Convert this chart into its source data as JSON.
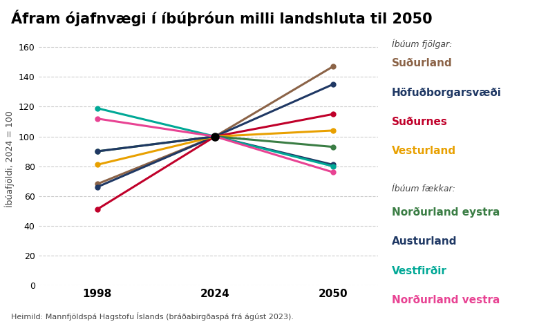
{
  "title": "Áfram ójafnvægi í íbúþróun milli landshluta til 2050",
  "ylabel": "Íbúafjöldi, 2024 = 100",
  "source": "Heimild: Mannfjöldspá Hagstofu Íslands (bráðabirgðaspá frá ágúst 2023).",
  "x": [
    1998,
    2024,
    2050
  ],
  "series": [
    {
      "name": "Suðurland",
      "color": "#8B6347",
      "values": [
        68,
        100,
        147
      ],
      "group": "fjölgar"
    },
    {
      "name": "Höfuðborgarsvæði",
      "color": "#1F3864",
      "values": [
        66,
        100,
        135
      ],
      "group": "fjölgar"
    },
    {
      "name": "Suðurnes",
      "color": "#C0002A",
      "values": [
        51,
        100,
        115
      ],
      "group": "fjölgar"
    },
    {
      "name": "Vesturland",
      "color": "#E8A000",
      "values": [
        81,
        100,
        104
      ],
      "group": "fjölgar"
    },
    {
      "name": "Norðurland eystra",
      "color": "#3A7D44",
      "values": [
        90,
        100,
        93
      ],
      "group": "fækkar"
    },
    {
      "name": "Austurland",
      "color": "#1F3864",
      "values": [
        90,
        100,
        81
      ],
      "group": "fækkar"
    },
    {
      "name": "Vestfirðir",
      "color": "#00A896",
      "values": [
        119,
        100,
        80
      ],
      "group": "fækkar"
    },
    {
      "name": "Norðurland vestra",
      "color": "#E84393",
      "values": [
        112,
        100,
        76
      ],
      "group": "fækkar"
    }
  ],
  "legend_fjolgar_label": "Íbúum fjölgar:",
  "legend_faekkar_label": "Íbúum fækkar:",
  "ylim": [
    0,
    170
  ],
  "yticks": [
    0,
    20,
    40,
    60,
    80,
    100,
    120,
    140,
    160
  ],
  "xticks": [
    1998,
    2024,
    2050
  ],
  "background_color": "#FFFFFF",
  "grid_color": "#CCCCCC",
  "title_fontsize": 15,
  "axis_label_fontsize": 9,
  "tick_fontsize": 10,
  "legend_fontsize": 11
}
